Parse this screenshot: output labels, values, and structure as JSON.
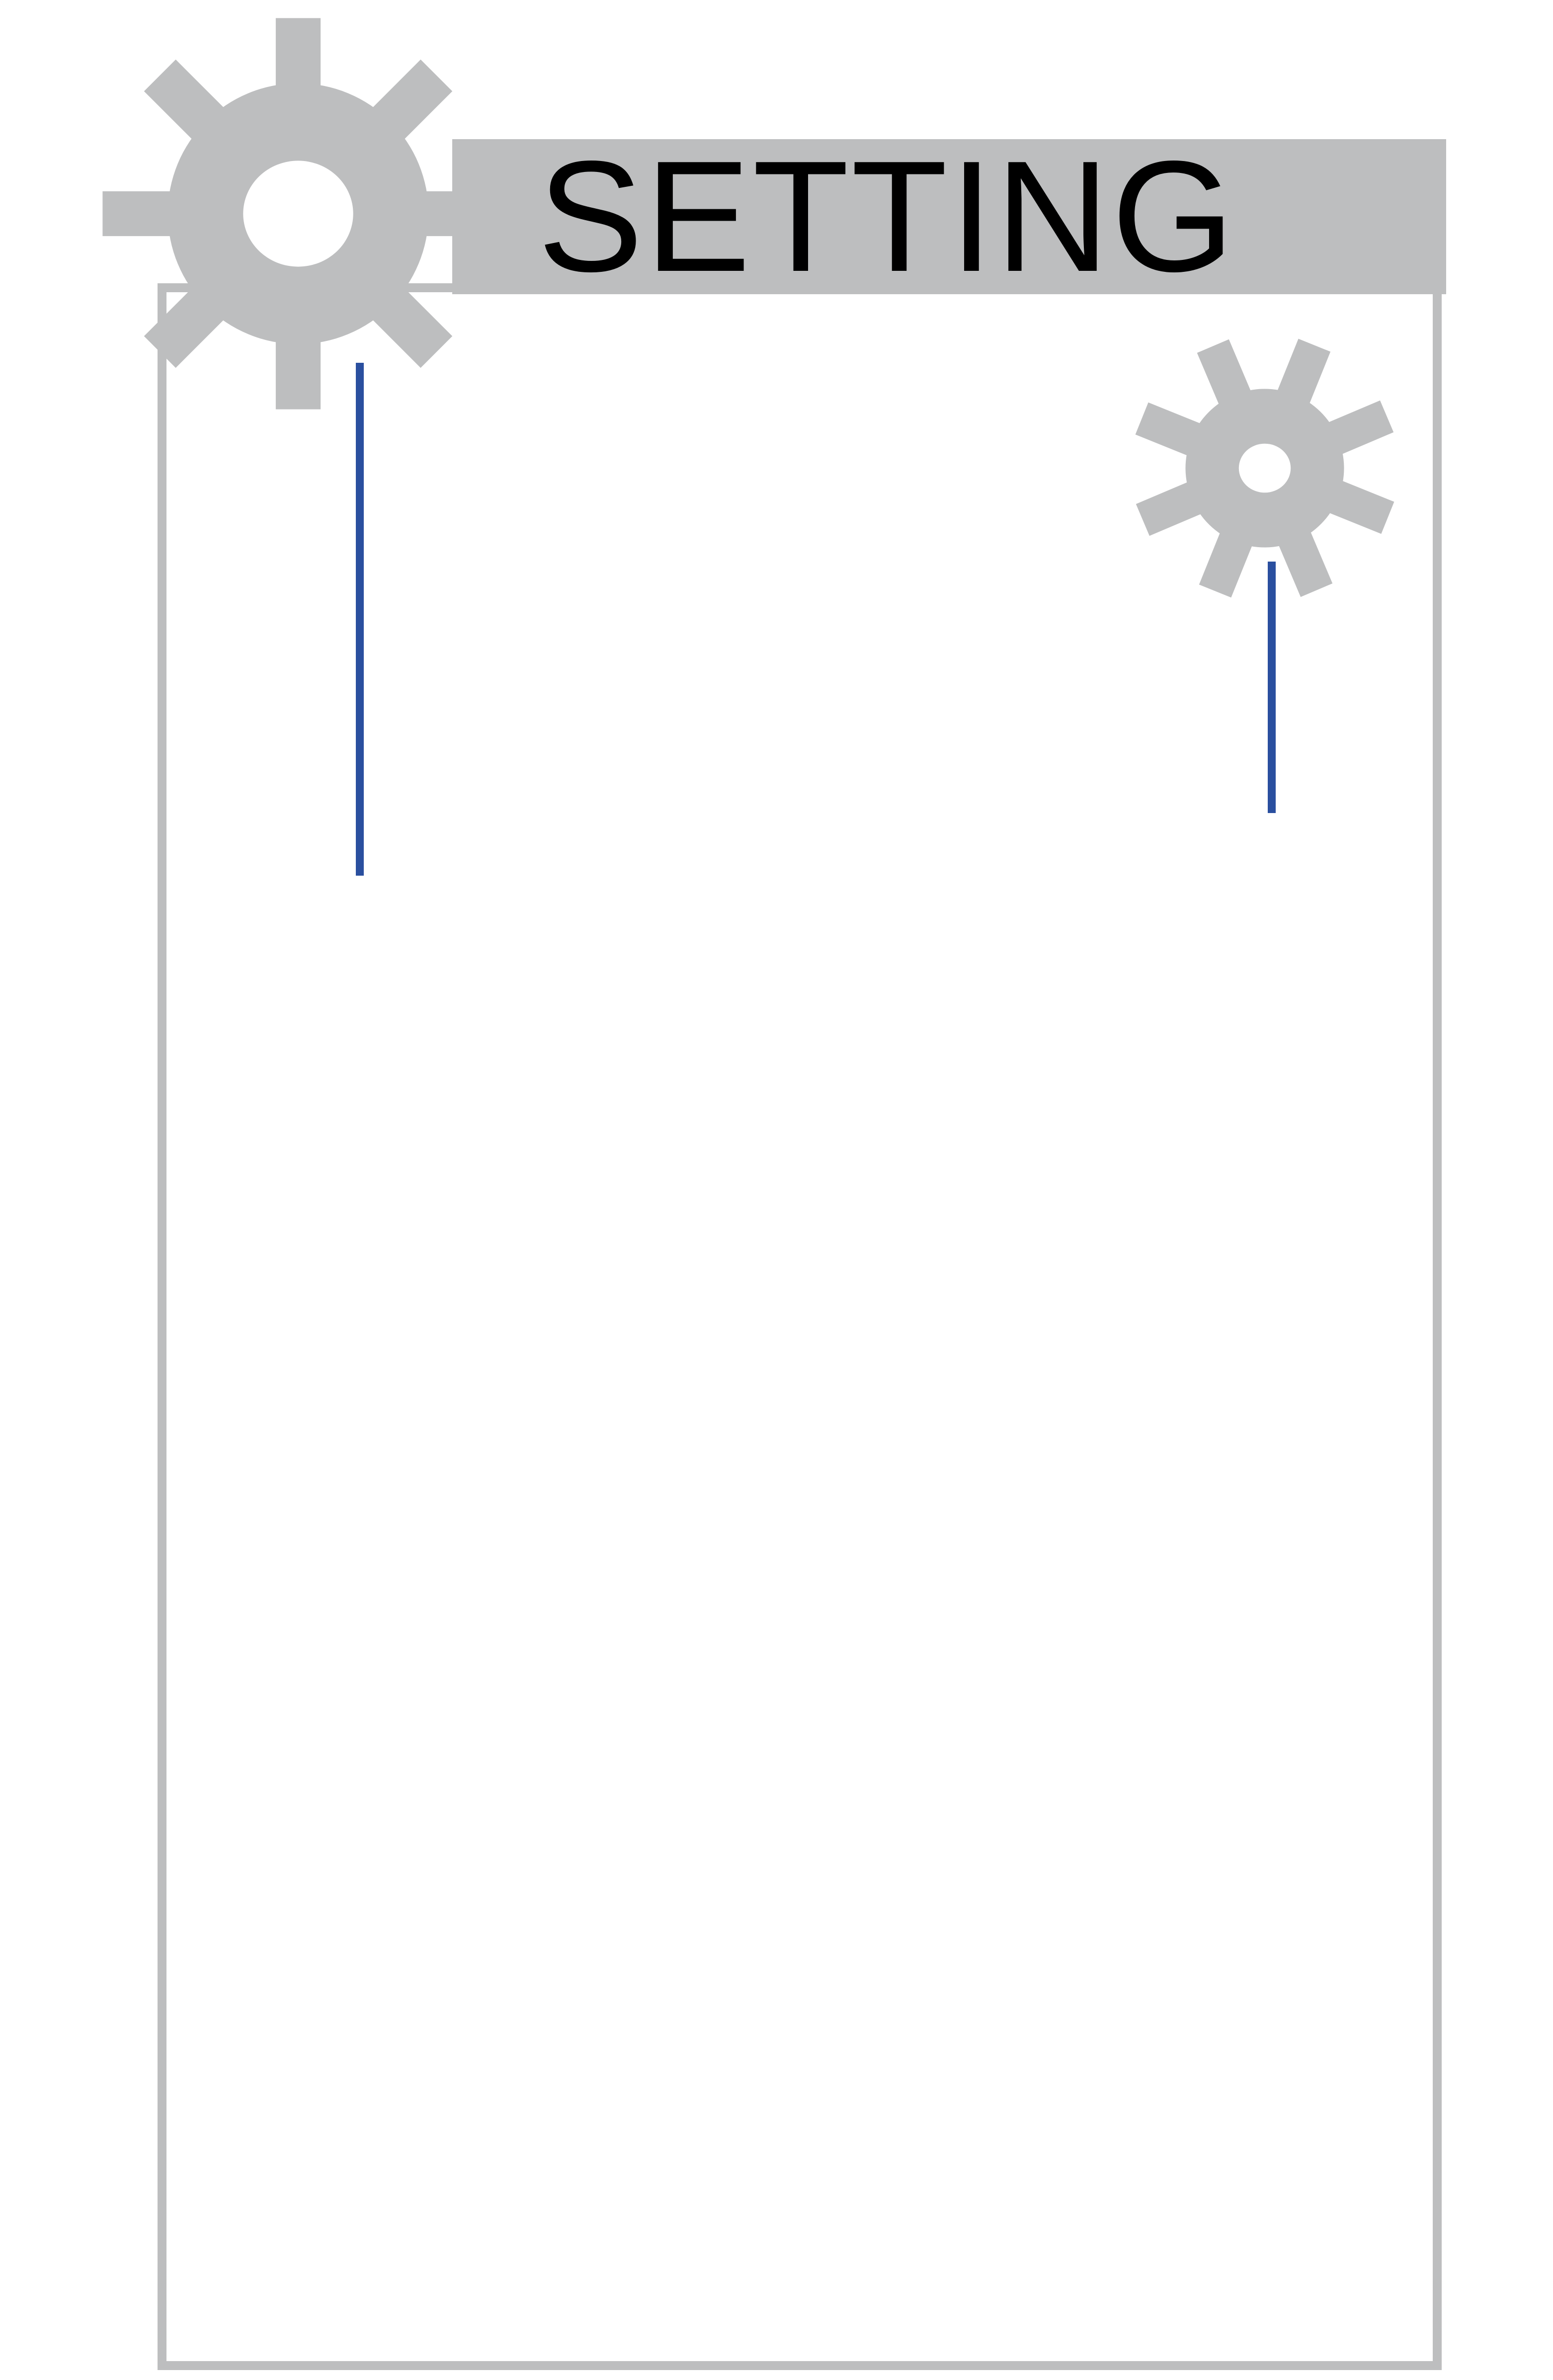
{
  "header": {
    "title": "SETTING"
  },
  "icons": {
    "primary": "gear-icon",
    "secondary": "gear-icon"
  },
  "colors": {
    "chrome_gray": "#bdbebf",
    "title_text": "#000000",
    "hanger_blue": "#2a4f9f",
    "background": "#ffffff"
  }
}
